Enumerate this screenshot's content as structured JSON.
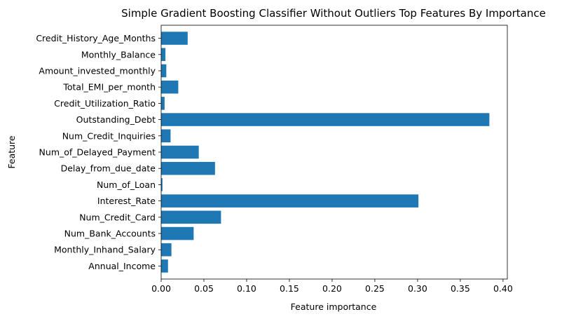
{
  "chart_data": {
    "type": "bar",
    "orientation": "horizontal",
    "title": "Simple Gradient Boosting Classifier Without Outliers Top Features By Importance",
    "xlabel": "Feature importance",
    "ylabel": "Feature",
    "xlim": [
      0,
      0.405
    ],
    "xticks": [
      0.0,
      0.05,
      0.1,
      0.15,
      0.2,
      0.25,
      0.3,
      0.35,
      0.4
    ],
    "xtick_labels": [
      "0.00",
      "0.05",
      "0.10",
      "0.15",
      "0.20",
      "0.25",
      "0.30",
      "0.35",
      "0.40"
    ],
    "grid": false,
    "bar_color": "#1f77b4",
    "categories": [
      "Annual_Income",
      "Monthly_Inhand_Salary",
      "Num_Bank_Accounts",
      "Num_Credit_Card",
      "Interest_Rate",
      "Num_of_Loan",
      "Delay_from_due_date",
      "Num_of_Delayed_Payment",
      "Num_Credit_Inquiries",
      "Outstanding_Debt",
      "Credit_Utilization_Ratio",
      "Total_EMI_per_month",
      "Amount_invested_monthly",
      "Monthly_Balance",
      "Credit_History_Age_Months"
    ],
    "values": [
      0.008,
      0.012,
      0.038,
      0.07,
      0.301,
      0.0015,
      0.063,
      0.044,
      0.011,
      0.384,
      0.004,
      0.02,
      0.006,
      0.005,
      0.031
    ]
  }
}
